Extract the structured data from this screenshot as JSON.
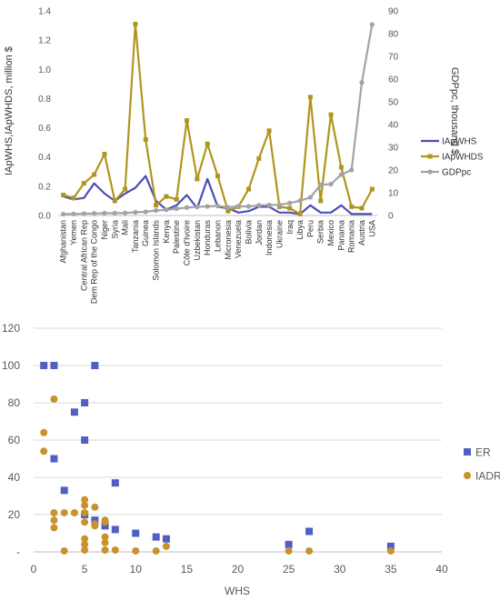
{
  "chart_data": [
    {
      "type": "line",
      "title": "",
      "ylabel_left": "IApWHS,IApWHDS, million $",
      "ylabel_right": "GDPpc, thousand $",
      "ylim_left": [
        0,
        1.4
      ],
      "yticks_left": [
        "0.0",
        "0.2",
        "0.4",
        "0.6",
        "0.8",
        "1.0",
        "1.2",
        "1.4"
      ],
      "ylim_right": [
        0,
        90
      ],
      "yticks_right": [
        "0",
        "10",
        "20",
        "30",
        "40",
        "50",
        "60",
        "70",
        "80",
        "90"
      ],
      "categories": [
        "Afghanistan",
        "Yemen",
        "Central African Rep",
        "Dem Rep of the Congo",
        "Niger",
        "Syria",
        "Mali",
        "Tanzania",
        "Guinea",
        "Solomon Islands",
        "Kenya",
        "Palestine",
        "Côte d'Ivoire",
        "Uzbekistan",
        "Honduras",
        "Lebanon",
        "Micronesia",
        "Venezuela",
        "Bolivia",
        "Jordan",
        "Indonesia",
        "Ukraine",
        "Iraq",
        "Libya",
        "Peru",
        "Serbia",
        "Mexico",
        "Panama",
        "Romania",
        "Austria",
        "USA"
      ],
      "legend_position": "right",
      "grid": false,
      "series": [
        {
          "name": "IApWHS",
          "axis": "left",
          "color": "#4a4fb5",
          "marker": "none",
          "values": [
            0.13,
            0.11,
            0.12,
            0.22,
            0.15,
            0.1,
            0.15,
            0.19,
            0.27,
            0.1,
            0.04,
            0.07,
            0.14,
            0.05,
            0.25,
            0.06,
            0.05,
            0.02,
            0.03,
            0.06,
            0.06,
            0.02,
            0.02,
            0.01,
            0.07,
            0.02,
            0.02,
            0.07,
            0.01,
            0.01,
            0.01
          ]
        },
        {
          "name": "IApWHDS",
          "axis": "left",
          "color": "#b0951f",
          "marker": "square",
          "values": [
            0.14,
            0.12,
            0.22,
            0.28,
            0.42,
            0.1,
            0.18,
            1.31,
            0.52,
            0.07,
            0.13,
            0.11,
            0.65,
            0.25,
            0.49,
            0.27,
            0.03,
            0.06,
            0.18,
            0.39,
            0.58,
            0.06,
            0.05,
            0.01,
            0.81,
            0.1,
            0.69,
            0.33,
            0.06,
            0.05,
            0.18
          ]
        },
        {
          "name": "GDPpc",
          "axis": "right",
          "color": "#a3a3a3",
          "marker": "circle",
          "values": [
            0.6,
            0.7,
            0.8,
            0.9,
            1.0,
            1.0,
            1.1,
            1.4,
            1.6,
            2.2,
            2.5,
            3.0,
            3.5,
            3.8,
            4.0,
            4.2,
            3.6,
            4.0,
            4.0,
            4.5,
            4.6,
            4.7,
            5.5,
            6.5,
            8.0,
            13.5,
            13.8,
            18.0,
            20.0,
            58.5,
            84.0
          ]
        }
      ]
    },
    {
      "type": "scatter",
      "title": "",
      "xlabel": "WHS",
      "ylabel": "",
      "xlim": [
        0,
        40
      ],
      "xticks": [
        "0",
        "5",
        "10",
        "15",
        "20",
        "25",
        "30",
        "35",
        "40"
      ],
      "ylim": [
        0,
        120
      ],
      "yticks": [
        "-",
        "20",
        "40",
        "60",
        "80",
        "100",
        "120"
      ],
      "legend_position": "right",
      "grid": true,
      "series": [
        {
          "name": "ER",
          "color": "#4f5fc4",
          "marker": "square",
          "points": [
            [
              1,
              100
            ],
            [
              2,
              100
            ],
            [
              2,
              50
            ],
            [
              3,
              33
            ],
            [
              4,
              75
            ],
            [
              5,
              80
            ],
            [
              5,
              60
            ],
            [
              5,
              20
            ],
            [
              6,
              100
            ],
            [
              6,
              17
            ],
            [
              7,
              14
            ],
            [
              8,
              12
            ],
            [
              8,
              37
            ],
            [
              10,
              10
            ],
            [
              12,
              8
            ],
            [
              13,
              7
            ],
            [
              25,
              4
            ],
            [
              27,
              11
            ],
            [
              35,
              3
            ]
          ]
        },
        {
          "name": "IADR",
          "color": "#c8922c",
          "marker": "circle",
          "points": [
            [
              1,
              64
            ],
            [
              1,
              54
            ],
            [
              2,
              82
            ],
            [
              2,
              21
            ],
            [
              2,
              17
            ],
            [
              2,
              13
            ],
            [
              3,
              21
            ],
            [
              3,
              0.5
            ],
            [
              4,
              21
            ],
            [
              5,
              28
            ],
            [
              5,
              25
            ],
            [
              5,
              21
            ],
            [
              5,
              16
            ],
            [
              5,
              7
            ],
            [
              5,
              4
            ],
            [
              5,
              1
            ],
            [
              6,
              24
            ],
            [
              6,
              15
            ],
            [
              6,
              14
            ],
            [
              7,
              17
            ],
            [
              7,
              16
            ],
            [
              7,
              8
            ],
            [
              7,
              5
            ],
            [
              7,
              1
            ],
            [
              8,
              1
            ],
            [
              10,
              0.5
            ],
            [
              12,
              0.5
            ],
            [
              13,
              3
            ],
            [
              25,
              0.5
            ],
            [
              27,
              0.5
            ],
            [
              35,
              0.5
            ]
          ]
        }
      ]
    }
  ]
}
